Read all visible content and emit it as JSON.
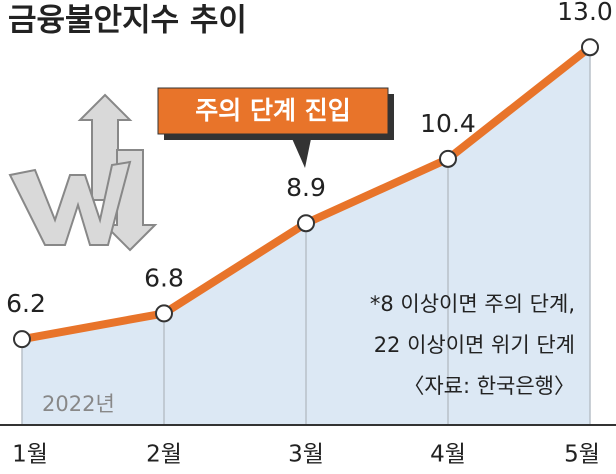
{
  "chart_data": {
    "type": "line",
    "title": "금융불안지수 추이",
    "categories": [
      "1월",
      "2월",
      "3월",
      "4월",
      "5월"
    ],
    "values": [
      6.2,
      6.8,
      8.9,
      10.4,
      13.0
    ],
    "value_labels": [
      "6.2",
      "6.8",
      "8.9",
      "10.4",
      "13.0"
    ],
    "color": "#e8742a",
    "area_color": "#dce8f4",
    "ylim": [
      4.2,
      14.1
    ],
    "annotation": "주의 단계 진입",
    "notes": [
      "*8 이상이면 주의 단계,",
      "22 이상이면 위기 단계",
      "〈자료: 한국은행〉"
    ],
    "year_label": "2022년"
  }
}
